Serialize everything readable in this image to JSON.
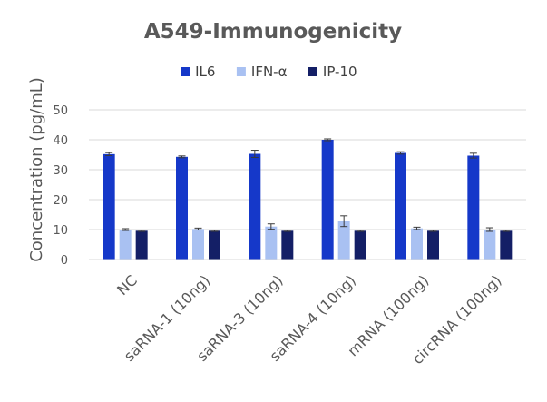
{
  "chart_data": {
    "type": "bar",
    "title": "A549-Immunogenicity",
    "xlabel": "",
    "ylabel": "Concentration (pg/mL)",
    "ylim": [
      0,
      50
    ],
    "yticks": [
      0,
      10,
      20,
      30,
      40,
      50
    ],
    "grid": true,
    "legend_position": "top",
    "categories": [
      "NC",
      "saRNA-1 (10ng)",
      "saRNA-3 (10ng)",
      "saRNA-4 (10ng)",
      "mRNA (100ng)",
      "circRNA (100ng)"
    ],
    "series": [
      {
        "name": "IL6",
        "color": "#1538c9",
        "values": [
          35.2,
          34.3,
          35.3,
          40.0,
          35.6,
          34.7
        ],
        "errors": [
          0.5,
          0.3,
          1.2,
          0.3,
          0.4,
          0.8
        ]
      },
      {
        "name": "IFN-α",
        "color": "#a9c1f2",
        "values": [
          10.0,
          10.2,
          11.0,
          12.8,
          10.4,
          10.0
        ],
        "errors": [
          0.3,
          0.3,
          0.9,
          1.8,
          0.4,
          0.6
        ]
      },
      {
        "name": "IP-10",
        "color": "#141f66",
        "values": [
          9.6,
          9.6,
          9.6,
          9.6,
          9.6,
          9.6
        ],
        "errors": [
          0.2,
          0.2,
          0.2,
          0.2,
          0.2,
          0.2
        ]
      }
    ]
  }
}
